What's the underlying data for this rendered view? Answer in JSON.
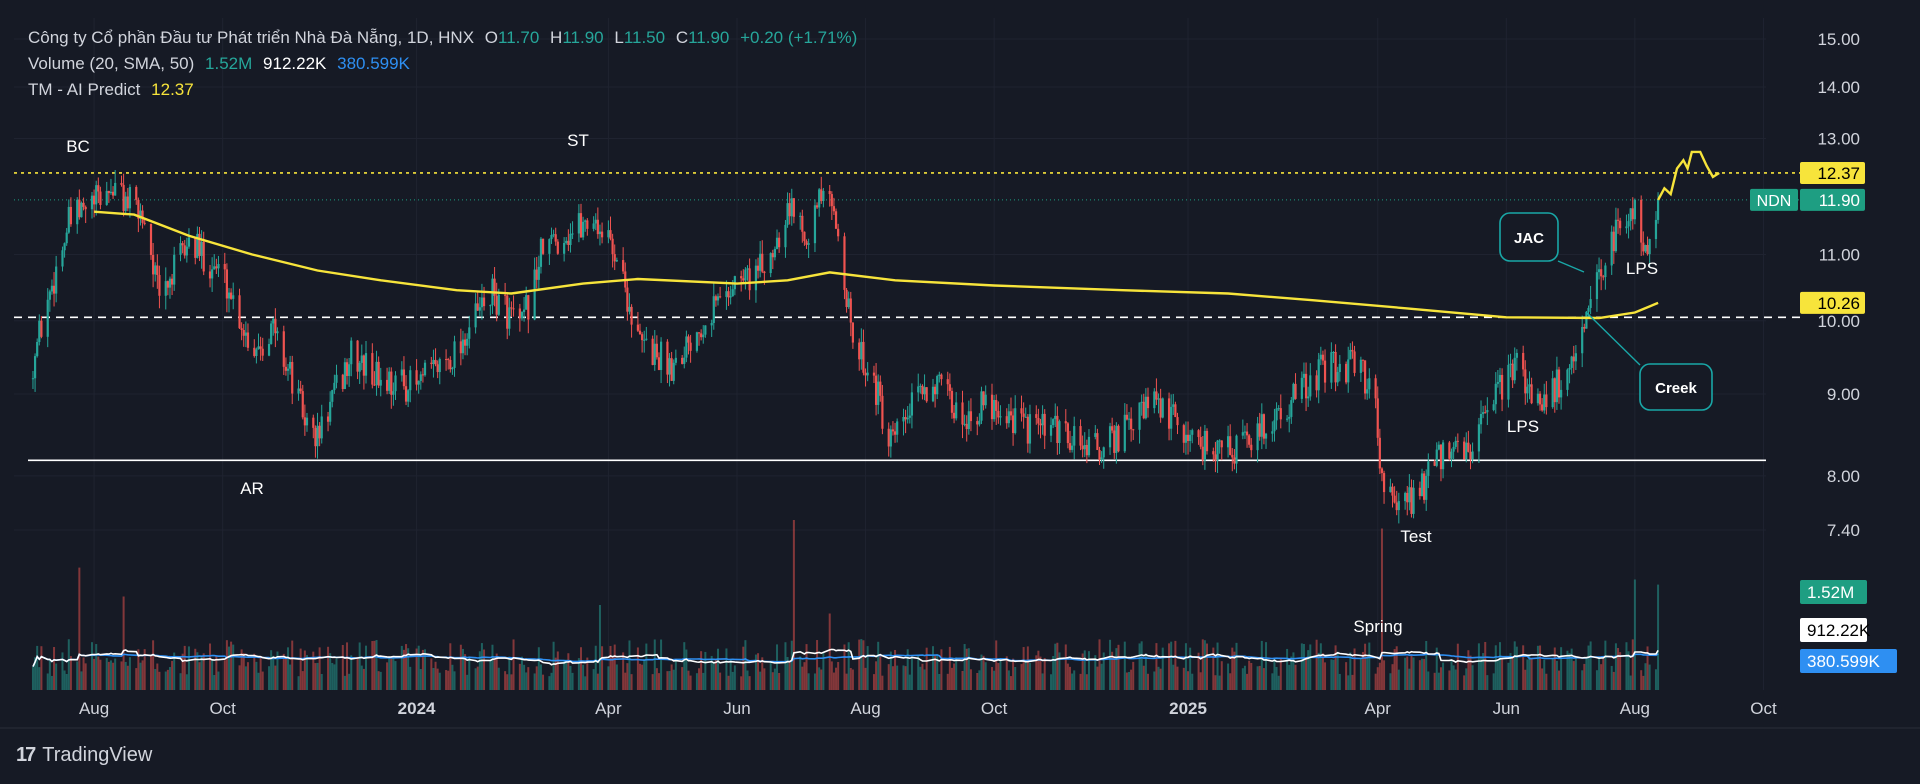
{
  "legend": {
    "title": "Công ty Cổ phần Đầu tư Phát triển Nhà Đà Nẵng, 1D, HNX",
    "o_label": "O",
    "o_value": "11.70",
    "h_label": "H",
    "h_value": "11.90",
    "l_label": "L",
    "l_value": "11.50",
    "c_label": "C",
    "c_value": "11.90",
    "change": "+0.20 (+1.71%)",
    "volume_title": "Volume (20, SMA, 50)",
    "vol_1": "1.52M",
    "vol_2": "912.22K",
    "vol_3": "380.599K",
    "indicator_title": "TM - AI Predict",
    "indicator_value": "12.37"
  },
  "footer": {
    "brand": "TradingView"
  },
  "chart_data": {
    "type": "candlestick",
    "symbol": "NDN",
    "exchange": "HNX",
    "interval": "1D",
    "y_axis": {
      "ticks": [
        "15.00",
        "14.00",
        "13.00",
        "11.00",
        "10.00",
        "9.00",
        "8.00",
        "7.40"
      ],
      "tick_values": [
        15.0,
        14.0,
        13.0,
        11.0,
        10.0,
        9.0,
        8.0,
        7.4
      ],
      "scale": "log"
    },
    "x_axis": {
      "ticks": [
        "Aug",
        "Oct",
        "2024",
        "Apr",
        "Jun",
        "Aug",
        "Oct",
        "2025",
        "Apr",
        "Jun",
        "Aug",
        "Oct"
      ],
      "bold_ticks": [
        "2024",
        "2025"
      ]
    },
    "price_badges": [
      {
        "label": "12.37",
        "value": 12.37,
        "color": "#f7e43b",
        "text_color": "#000000"
      },
      {
        "label": "11.90",
        "value": 11.9,
        "symbol_label": "NDN",
        "color": "#1e9e82",
        "text_color": "#ffffff"
      },
      {
        "label": "10.26",
        "value": 10.26,
        "color": "#f7e43b",
        "text_color": "#000000"
      }
    ],
    "volume_badges": [
      {
        "label": "1.52M",
        "color": "#1e9e82",
        "text_color": "#ffffff"
      },
      {
        "label": "912.22K",
        "color": "#ffffff",
        "text_color": "#000000"
      },
      {
        "label": "380.599K",
        "color": "#2e8ff2",
        "text_color": "#ffffff"
      }
    ],
    "horizontal_lines": [
      {
        "value": 12.37,
        "style": "dotted",
        "color": "#f7e43b"
      },
      {
        "value": 10.05,
        "style": "dashed",
        "color": "#ffffff"
      },
      {
        "value": 8.18,
        "style": "solid",
        "color": "#ffffff"
      }
    ],
    "annotations": [
      {
        "text": "BC",
        "date": "2023-08-10"
      },
      {
        "text": "ST",
        "date": "2024-03-25"
      },
      {
        "text": "AR",
        "date": "2023-11-15"
      },
      {
        "text": "Test",
        "date": "2025-04-15"
      },
      {
        "text": "Spring",
        "date": "2025-04-05"
      },
      {
        "text": "LPS",
        "date": "2025-06-10"
      },
      {
        "text": "LPS",
        "date": "2025-08-05"
      },
      {
        "text": "JAC",
        "date": "2025-06-15",
        "boxed": true
      },
      {
        "text": "Creek",
        "date": "2025-08-15",
        "boxed": true
      }
    ],
    "price_waypoints": [
      [
        "2023-07-01",
        9.2
      ],
      [
        "2023-07-20",
        11.5
      ],
      [
        "2023-08-10",
        12.1
      ],
      [
        "2023-08-25",
        11.6
      ],
      [
        "2023-09-01",
        10.3
      ],
      [
        "2023-09-15",
        11.2
      ],
      [
        "2023-10-01",
        10.7
      ],
      [
        "2023-10-15",
        9.6
      ],
      [
        "2023-10-25",
        9.9
      ],
      [
        "2023-11-10",
        8.6
      ],
      [
        "2023-11-15",
        8.45
      ],
      [
        "2023-12-01",
        9.5
      ],
      [
        "2023-12-15",
        9.2
      ],
      [
        "2024-01-01",
        9.1
      ],
      [
        "2024-01-20",
        9.6
      ],
      [
        "2024-02-05",
        10.4
      ],
      [
        "2024-02-20",
        9.9
      ],
      [
        "2024-03-01",
        11.1
      ],
      [
        "2024-03-25",
        11.6
      ],
      [
        "2024-04-05",
        11.0
      ],
      [
        "2024-04-15",
        9.7
      ],
      [
        "2024-05-01",
        9.4
      ],
      [
        "2024-05-20",
        10.2
      ],
      [
        "2024-06-01",
        10.6
      ],
      [
        "2024-06-15",
        10.8
      ],
      [
        "2024-06-25",
        11.8
      ],
      [
        "2024-07-05",
        11.4
      ],
      [
        "2024-07-12",
        12.0
      ],
      [
        "2024-07-20",
        11.3
      ],
      [
        "2024-07-25",
        9.8
      ],
      [
        "2024-08-05",
        9.2
      ],
      [
        "2024-08-12",
        8.3
      ],
      [
        "2024-08-25",
        8.9
      ],
      [
        "2024-09-01",
        9.2
      ],
      [
        "2024-09-15",
        8.7
      ],
      [
        "2024-10-01",
        8.9
      ],
      [
        "2024-10-15",
        8.6
      ],
      [
        "2024-11-01",
        8.5
      ],
      [
        "2024-11-20",
        8.3
      ],
      [
        "2024-12-05",
        8.6
      ],
      [
        "2024-12-15",
        8.9
      ],
      [
        "2025-01-05",
        8.4
      ],
      [
        "2025-01-25",
        8.3
      ],
      [
        "2025-02-15",
        8.8
      ],
      [
        "2025-03-05",
        9.3
      ],
      [
        "2025-03-20",
        9.4
      ],
      [
        "2025-03-30",
        9.1
      ],
      [
        "2025-04-03",
        8.0
      ],
      [
        "2025-04-10",
        7.6
      ],
      [
        "2025-04-20",
        7.8
      ],
      [
        "2025-05-01",
        8.2
      ],
      [
        "2025-05-15",
        8.3
      ],
      [
        "2025-05-30",
        9.1
      ],
      [
        "2025-06-05",
        9.4
      ],
      [
        "2025-06-15",
        8.9
      ],
      [
        "2025-06-25",
        9.1
      ],
      [
        "2025-07-05",
        9.5
      ],
      [
        "2025-07-15",
        10.6
      ],
      [
        "2025-07-20",
        11.1
      ],
      [
        "2025-07-25",
        11.5
      ],
      [
        "2025-08-01",
        11.8
      ],
      [
        "2025-08-05",
        11.0
      ],
      [
        "2025-08-10",
        11.5
      ],
      [
        "2025-08-12",
        11.9
      ]
    ],
    "sma_waypoints": [
      [
        "2023-08-01",
        11.7
      ],
      [
        "2023-08-20",
        11.65
      ],
      [
        "2023-09-15",
        11.3
      ],
      [
        "2023-10-15",
        11.0
      ],
      [
        "2023-11-15",
        10.75
      ],
      [
        "2023-12-15",
        10.6
      ],
      [
        "2024-01-20",
        10.45
      ],
      [
        "2024-02-15",
        10.4
      ],
      [
        "2024-03-20",
        10.55
      ],
      [
        "2024-04-15",
        10.62
      ],
      [
        "2024-06-01",
        10.55
      ],
      [
        "2024-06-25",
        10.6
      ],
      [
        "2024-07-15",
        10.72
      ],
      [
        "2024-08-15",
        10.6
      ],
      [
        "2024-10-01",
        10.52
      ],
      [
        "2024-12-01",
        10.45
      ],
      [
        "2025-01-20",
        10.4
      ],
      [
        "2025-03-01",
        10.3
      ],
      [
        "2025-04-15",
        10.18
      ],
      [
        "2025-06-01",
        10.05
      ],
      [
        "2025-07-15",
        10.04
      ],
      [
        "2025-08-01",
        10.12
      ],
      [
        "2025-08-12",
        10.26
      ]
    ],
    "prediction_waypoints": [
      [
        "2025-08-12",
        11.9
      ],
      [
        "2025-08-15",
        12.1
      ],
      [
        "2025-08-18",
        12.0
      ],
      [
        "2025-08-21",
        12.45
      ],
      [
        "2025-08-24",
        12.6
      ],
      [
        "2025-08-26",
        12.45
      ],
      [
        "2025-08-28",
        12.75
      ],
      [
        "2025-09-01",
        12.75
      ],
      [
        "2025-09-04",
        12.5
      ],
      [
        "2025-09-07",
        12.3
      ],
      [
        "2025-09-10",
        12.37
      ]
    ],
    "volume_spikes": [
      [
        "2024-06-28",
        1.0
      ],
      [
        "2025-04-03",
        0.95
      ],
      [
        "2023-07-25",
        0.72
      ],
      [
        "2023-08-15",
        0.55
      ],
      [
        "2025-08-01",
        0.65
      ],
      [
        "2025-08-12",
        0.62
      ],
      [
        "2024-03-28",
        0.5
      ],
      [
        "2024-07-15",
        0.45
      ]
    ]
  }
}
